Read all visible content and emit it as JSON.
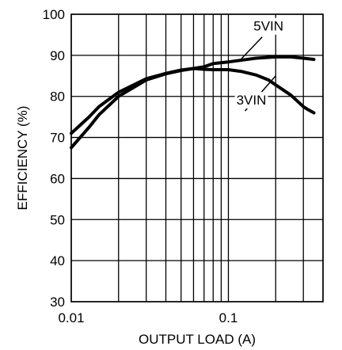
{
  "chart_data": {
    "type": "line",
    "title": "",
    "xlabel": "OUTPUT LOAD (A)",
    "ylabel": "EFFICIENCY (%)",
    "x_scale": "log",
    "xlim": [
      0.01,
      0.4
    ],
    "ylim": [
      30,
      100
    ],
    "grid": true,
    "x_tick_labels": [
      {
        "value": 0.01,
        "label": "0.01"
      },
      {
        "value": 0.1,
        "label": "0.1"
      }
    ],
    "y_tick_labels": [
      {
        "value": 30,
        "label": "30"
      },
      {
        "value": 40,
        "label": "40"
      },
      {
        "value": 50,
        "label": "50"
      },
      {
        "value": 60,
        "label": "60"
      },
      {
        "value": 70,
        "label": "70"
      },
      {
        "value": 80,
        "label": "80"
      },
      {
        "value": 90,
        "label": "90"
      },
      {
        "value": 100,
        "label": "100"
      }
    ],
    "series": [
      {
        "name": "5VIN",
        "x": [
          0.01,
          0.013,
          0.015,
          0.02,
          0.03,
          0.04,
          0.05,
          0.07,
          0.08,
          0.1,
          0.15,
          0.2,
          0.25,
          0.3,
          0.35
        ],
        "y": [
          67.5,
          72.5,
          75.5,
          80.0,
          84.0,
          85.5,
          86.3,
          87.2,
          88.0,
          88.4,
          89.3,
          89.6,
          89.6,
          89.3,
          89.0
        ]
      },
      {
        "name": "3VIN",
        "x": [
          0.01,
          0.013,
          0.015,
          0.02,
          0.03,
          0.04,
          0.05,
          0.06,
          0.07,
          0.08,
          0.1,
          0.12,
          0.15,
          0.18,
          0.2,
          0.25,
          0.3,
          0.32,
          0.35
        ],
        "y": [
          71.0,
          75.0,
          77.5,
          81.0,
          84.3,
          85.6,
          86.4,
          86.8,
          86.6,
          86.5,
          86.5,
          86.1,
          85.2,
          84.0,
          82.8,
          80.3,
          77.5,
          76.8,
          76.0
        ]
      }
    ],
    "annotations": [
      {
        "text": "5VIN",
        "points_to": {
          "x": 0.12,
          "y": 89.0
        },
        "label_at": {
          "x": 0.18,
          "y": 96
        }
      },
      {
        "text": "3VIN",
        "points_to": {
          "x": 0.2,
          "y": 85.0
        },
        "label_at": {
          "x": 0.14,
          "y": 78
        }
      }
    ]
  }
}
